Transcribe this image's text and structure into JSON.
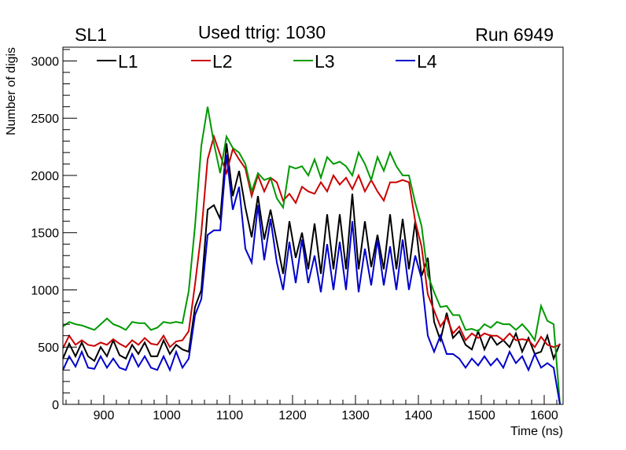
{
  "chart_data": {
    "type": "line",
    "title": "Used ttrig: 1030",
    "left_label": "SL1",
    "right_label": "Run 6949",
    "xlabel": "Time (ns)",
    "ylabel": "Number of digis",
    "xlim": [
      835,
      1630
    ],
    "ylim": [
      0,
      3120
    ],
    "x_ticks": [
      900,
      1000,
      1100,
      1200,
      1300,
      1400,
      1500,
      1600
    ],
    "y_ticks": [
      0,
      500,
      1000,
      1500,
      2000,
      2500,
      3000
    ],
    "grid": false,
    "legend_position": "top",
    "x": [
      835,
      845,
      855,
      865,
      875,
      885,
      895,
      905,
      915,
      925,
      935,
      945,
      955,
      965,
      975,
      985,
      995,
      1005,
      1015,
      1025,
      1035,
      1045,
      1055,
      1065,
      1075,
      1085,
      1095,
      1105,
      1115,
      1125,
      1135,
      1145,
      1155,
      1165,
      1175,
      1185,
      1195,
      1205,
      1215,
      1225,
      1235,
      1245,
      1255,
      1265,
      1275,
      1285,
      1295,
      1305,
      1315,
      1325,
      1335,
      1345,
      1355,
      1365,
      1375,
      1385,
      1395,
      1405,
      1415,
      1425,
      1435,
      1445,
      1455,
      1465,
      1475,
      1485,
      1495,
      1505,
      1515,
      1525,
      1535,
      1545,
      1555,
      1565,
      1575,
      1585,
      1595,
      1605,
      1615,
      1625
    ],
    "series": [
      {
        "name": "L1",
        "color": "#000000",
        "values": [
          400,
          530,
          420,
          540,
          420,
          380,
          500,
          420,
          560,
          430,
          400,
          520,
          440,
          540,
          420,
          420,
          560,
          440,
          520,
          480,
          460,
          850,
          1000,
          1700,
          1740,
          1620,
          2280,
          1820,
          2040,
          1720,
          1460,
          1820,
          1440,
          1700,
          1420,
          1140,
          1600,
          1280,
          1500,
          1180,
          1580,
          1140,
          1660,
          1180,
          1660,
          1180,
          1840,
          1180,
          1600,
          1200,
          1480,
          1180,
          1660,
          1180,
          1620,
          1180,
          1600,
          1120,
          1280,
          720,
          560,
          800,
          580,
          640,
          520,
          480,
          640,
          480,
          600,
          520,
          560,
          500,
          620,
          460,
          580,
          440,
          460,
          600,
          400,
          530
        ]
      },
      {
        "name": "L2",
        "color": "#cc0000",
        "values": [
          490,
          600,
          520,
          560,
          520,
          510,
          540,
          520,
          570,
          530,
          500,
          560,
          520,
          580,
          530,
          520,
          600,
          500,
          550,
          560,
          640,
          1050,
          1500,
          2140,
          2340,
          2180,
          2020,
          2230,
          2140,
          2060,
          1820,
          2000,
          1860,
          1980,
          1940,
          1780,
          1840,
          1760,
          1900,
          1860,
          1840,
          1940,
          1860,
          2000,
          1920,
          1980,
          1880,
          2000,
          1860,
          1960,
          1860,
          1780,
          1940,
          1940,
          1960,
          1940,
          1600,
          1380,
          960,
          820,
          680,
          760,
          620,
          680,
          560,
          620,
          580,
          620,
          600,
          600,
          560,
          620,
          560,
          570,
          560,
          500,
          590,
          520,
          500,
          520
        ]
      },
      {
        "name": "L3",
        "color": "#009900",
        "values": [
          680,
          720,
          700,
          690,
          670,
          650,
          700,
          750,
          700,
          680,
          650,
          720,
          710,
          710,
          650,
          670,
          720,
          710,
          720,
          710,
          990,
          1560,
          2260,
          2600,
          2280,
          2020,
          2340,
          2240,
          2200,
          2100,
          1860,
          2020,
          1960,
          1980,
          1800,
          1720,
          2080,
          2060,
          2080,
          2000,
          2140,
          1980,
          2160,
          2100,
          2120,
          2080,
          2000,
          2200,
          2100,
          1960,
          2160,
          2040,
          2200,
          2080,
          2000,
          2000,
          1760,
          1560,
          1130,
          980,
          850,
          860,
          780,
          780,
          650,
          660,
          640,
          700,
          670,
          720,
          700,
          700,
          650,
          700,
          640,
          560,
          860,
          730,
          700,
          0
        ]
      },
      {
        "name": "L4",
        "color": "#0000cc",
        "values": [
          300,
          420,
          330,
          460,
          320,
          310,
          420,
          320,
          400,
          320,
          300,
          440,
          330,
          420,
          320,
          300,
          420,
          300,
          460,
          320,
          400,
          780,
          920,
          1480,
          1520,
          1520,
          2180,
          1700,
          1900,
          1360,
          1240,
          1740,
          1260,
          1620,
          1240,
          1000,
          1420,
          1060,
          1440,
          1060,
          1300,
          980,
          1400,
          1000,
          1420,
          1000,
          1600,
          980,
          1360,
          1040,
          1440,
          1040,
          1380,
          1000,
          1440,
          1000,
          1300,
          1100,
          600,
          460,
          600,
          440,
          440,
          400,
          320,
          400,
          340,
          420,
          340,
          400,
          320,
          460,
          360,
          420,
          300,
          440,
          320,
          360,
          320,
          0
        ]
      }
    ]
  }
}
